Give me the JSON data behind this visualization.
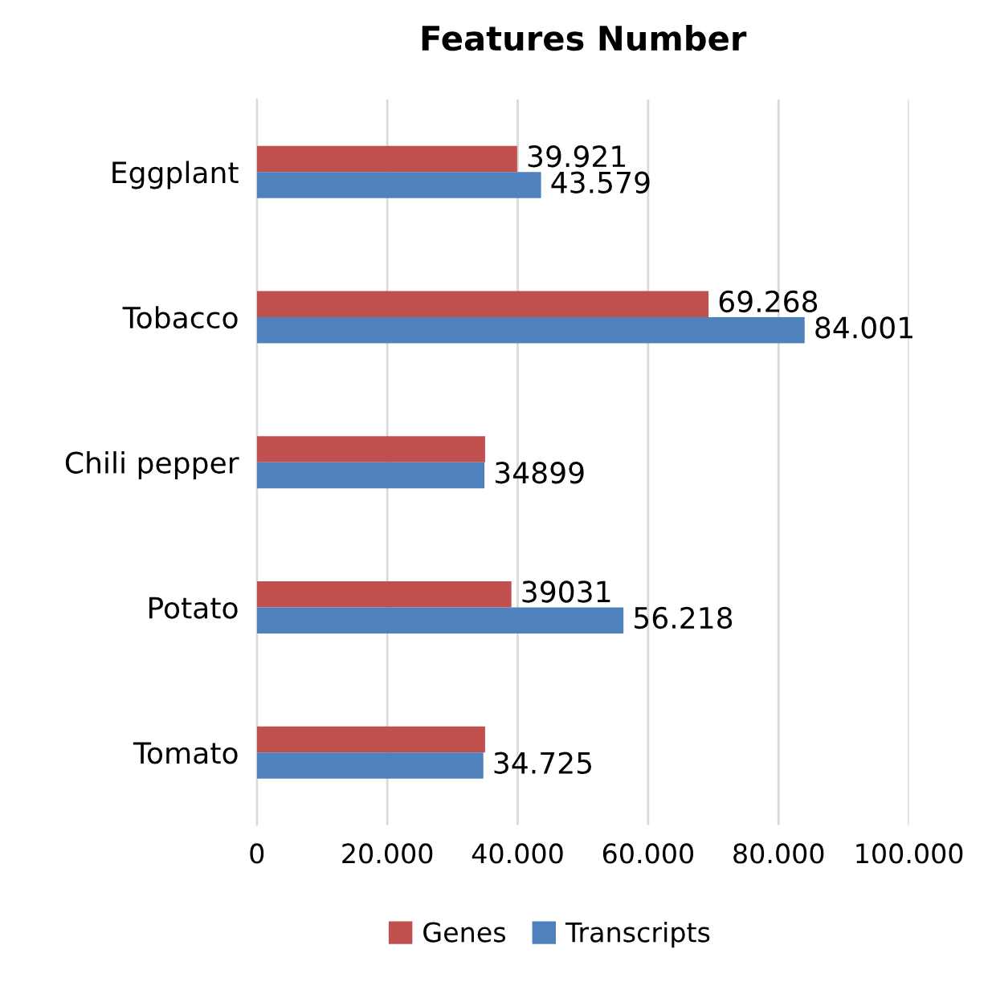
{
  "chart_data": {
    "type": "bar",
    "orientation": "horizontal",
    "title": "Features Number",
    "categories": [
      "Eggplant",
      "Tobacco",
      "Chili pepper",
      "Potato",
      "Tomato"
    ],
    "series": [
      {
        "name": "Genes",
        "color": "#c0504d",
        "values": [
          39921,
          69268,
          35000,
          39031,
          35000
        ],
        "value_labels": [
          "39.921",
          "69.268",
          null,
          "39031",
          null
        ]
      },
      {
        "name": "Transcripts",
        "color": "#4f81bd",
        "values": [
          43579,
          84001,
          34899,
          56218,
          34725
        ],
        "value_labels": [
          "43.579",
          "84.001",
          "34899",
          "56.218",
          "34.725"
        ]
      }
    ],
    "xlim": [
      0,
      100000
    ],
    "xticks": [
      0,
      {
        "value": 20000,
        "label": "20.000"
      },
      {
        "value": 40000,
        "label": "40.000"
      },
      {
        "value": 60000,
        "label": "60.000"
      },
      {
        "value": 80000,
        "label": "80.000"
      },
      {
        "value": 100000,
        "label": "100.000"
      }
    ],
    "grid": "x",
    "legend": "bottom"
  }
}
